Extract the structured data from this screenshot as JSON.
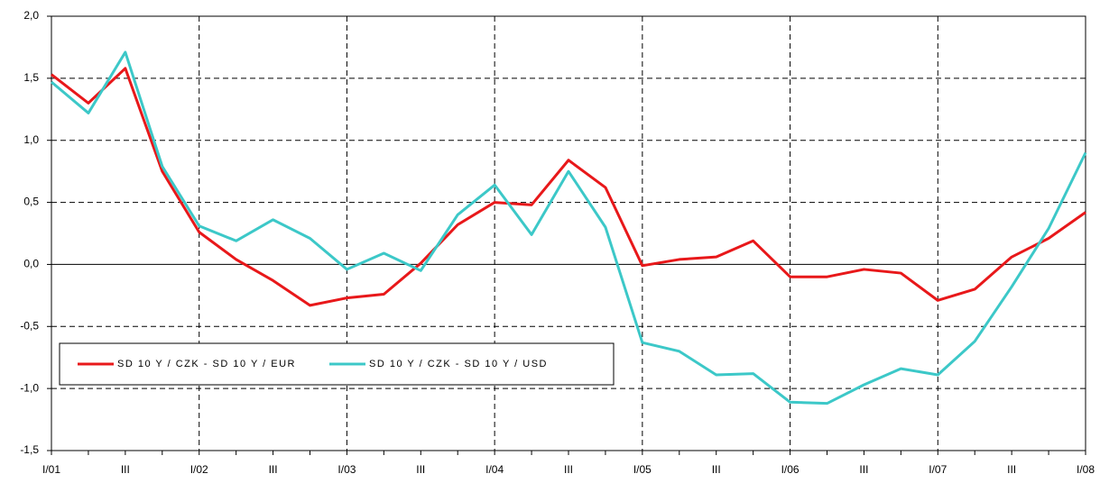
{
  "chart_data": {
    "type": "line",
    "categories": [
      "I/01",
      null,
      "III",
      null,
      "I/02",
      null,
      "III",
      null,
      "I/03",
      null,
      "III",
      null,
      "I/04",
      null,
      "III",
      null,
      "I/05",
      null,
      "III",
      null,
      "I/06",
      null,
      "III",
      null,
      "I/07",
      null,
      "III",
      null,
      "I/08"
    ],
    "series": [
      {
        "name": "SD 10 Y / CZK - SD 10 Y / EUR",
        "color": "#e8181a",
        "values": [
          1.53,
          1.3,
          1.58,
          0.75,
          0.26,
          0.04,
          -0.13,
          -0.33,
          -0.27,
          -0.24,
          0.01,
          0.32,
          0.5,
          0.48,
          0.84,
          0.62,
          -0.01,
          0.04,
          0.06,
          0.19,
          -0.1,
          -0.1,
          -0.04,
          -0.07,
          -0.29,
          -0.2,
          0.06,
          0.21,
          0.42
        ]
      },
      {
        "name": "SD 10 Y / CZK - SD 10 Y / USD",
        "color": "#3cc8c8",
        "values": [
          1.47,
          1.22,
          1.71,
          0.79,
          0.31,
          0.19,
          0.36,
          0.21,
          -0.04,
          0.09,
          -0.05,
          0.4,
          0.64,
          0.24,
          0.75,
          0.3,
          -0.63,
          -0.7,
          -0.89,
          -0.88,
          -1.11,
          -1.12,
          -0.97,
          -0.84,
          -0.89,
          -0.62,
          -0.18,
          0.29,
          0.9
        ]
      }
    ],
    "ylim": [
      -1.5,
      2.0
    ],
    "yticks": [
      {
        "value": -1.5,
        "label": "-1,5"
      },
      {
        "value": -1.0,
        "label": "-1,0"
      },
      {
        "value": -0.5,
        "label": "-0,5"
      },
      {
        "value": 0,
        "label": "0,0"
      },
      {
        "value": 0.5,
        "label": "0,5"
      },
      {
        "value": 1.0,
        "label": "1,0"
      },
      {
        "value": 1.5,
        "label": "1,5"
      },
      {
        "value": 2.0,
        "label": "2,0"
      }
    ],
    "grid": true,
    "legend": "lower-left"
  }
}
